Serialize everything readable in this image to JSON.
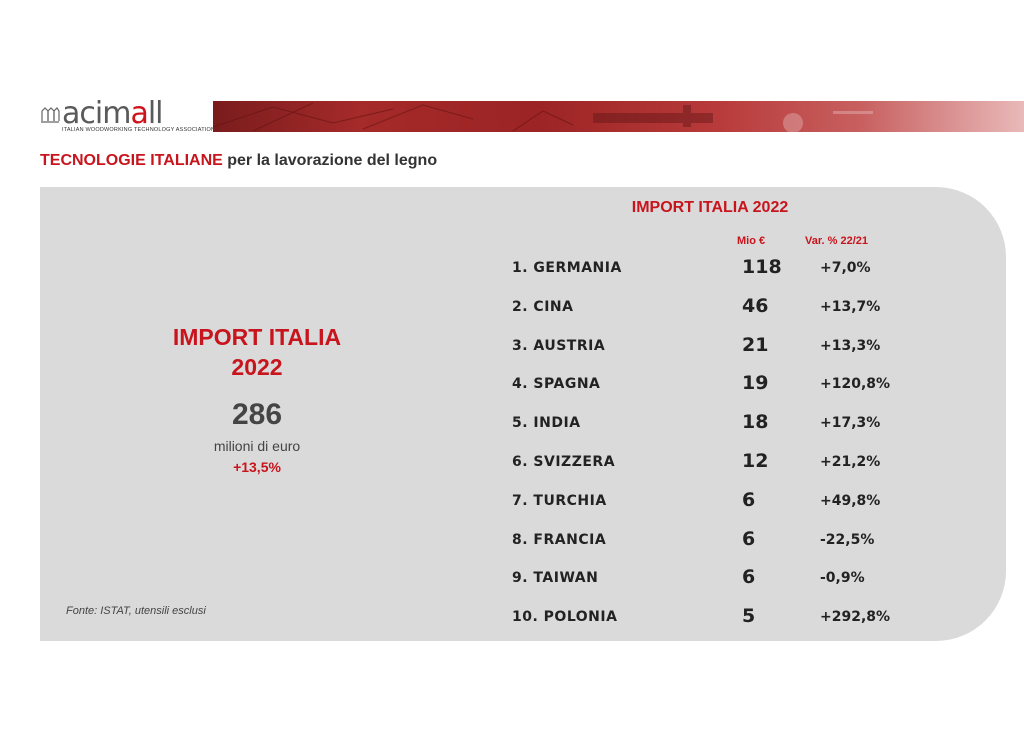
{
  "header": {
    "logo_prefix": "acim",
    "logo_accent": "a",
    "logo_suffix": "ll",
    "logo_tagline": "ITALIAN WOODWORKING TECHNOLOGY ASSOCIATION",
    "subtitle_red": "TECNOLOGIE ITALIANE",
    "subtitle_rest": " per la lavorazione del legno"
  },
  "summary": {
    "title_line1": "IMPORT ITALIA",
    "title_line2": "2022",
    "total": "286",
    "unit": "milioni di euro",
    "change": "+13,5%",
    "source": "Fonte: ISTAT, utensili esclusi"
  },
  "table": {
    "title": "IMPORT ITALIA  2022",
    "col_value": "Mio €",
    "col_change": "Var. % 22/21",
    "rows": [
      {
        "country": "1. GERMANIA",
        "value": "118",
        "change": "+7,0%"
      },
      {
        "country": "2. CINA",
        "value": "46",
        "change": "+13,7%"
      },
      {
        "country": "3. AUSTRIA",
        "value": "21",
        "change": "+13,3%"
      },
      {
        "country": "4. SPAGNA",
        "value": "19",
        "change": "+120,8%"
      },
      {
        "country": "5. INDIA",
        "value": "18",
        "change": "+17,3%"
      },
      {
        "country": "6. SVIZZERA",
        "value": "12",
        "change": "+21,2%"
      },
      {
        "country": "7. TURCHIA",
        "value": "6",
        "change": "+49,8%"
      },
      {
        "country": "8. FRANCIA",
        "value": "6",
        "change": "-22,5%"
      },
      {
        "country": "9. TAIWAN",
        "value": "6",
        "change": "-0,9%"
      },
      {
        "country": "10. POLONIA",
        "value": "5",
        "change": "+292,8%"
      }
    ]
  },
  "colors": {
    "accent_red": "#c8141c",
    "card_gray": "#dadada",
    "banner_red": "#a52a2a"
  }
}
